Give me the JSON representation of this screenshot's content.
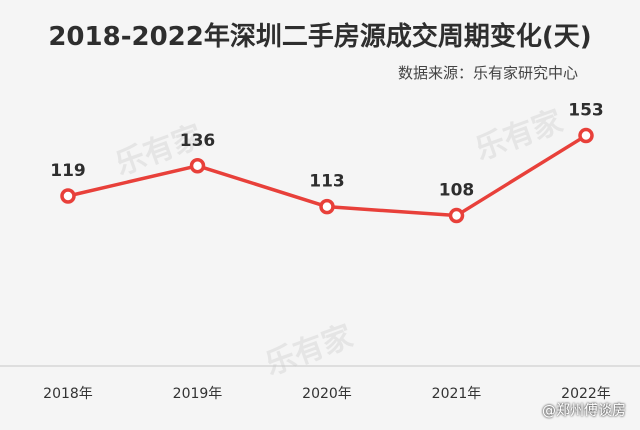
{
  "chart_data": {
    "type": "line",
    "title": "2018-2022年深圳二手房源成交周期变化(天)",
    "source": "数据来源：乐有家研究中心",
    "categories": [
      "2018年",
      "2019年",
      "2020年",
      "2021年",
      "2022年"
    ],
    "series": [
      {
        "values": [
          119,
          136,
          113,
          108,
          153
        ]
      }
    ],
    "ylim": [
      0,
      200
    ],
    "grid": false,
    "legend": "none",
    "line_color": "#e8403a",
    "marker_fill": "#ffffff"
  },
  "watermark_text": "乐有家",
  "credit_text": "@郑州傅谈房"
}
